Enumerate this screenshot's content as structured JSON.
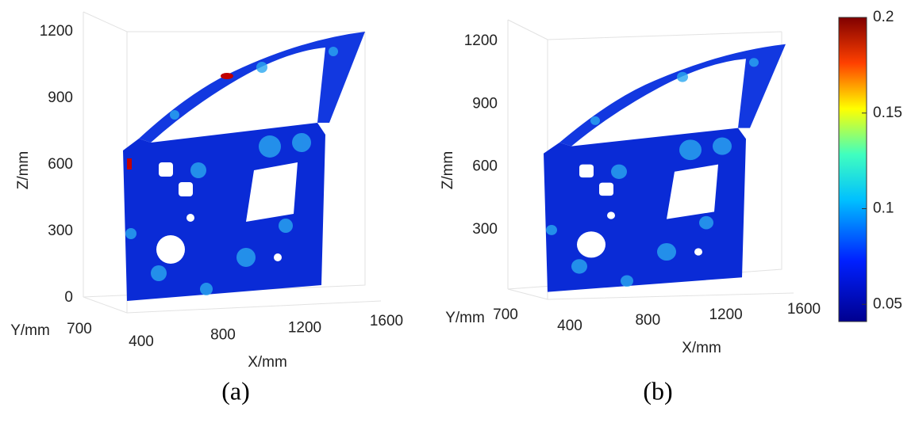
{
  "panels": [
    {
      "caption": "(a)",
      "x_label": "X/mm",
      "y_label": "Y/mm",
      "z_label": "Z/mm",
      "x_ticks": [
        400,
        800,
        1200,
        1600
      ],
      "y_ticks": [
        700
      ],
      "z_ticks": [
        0,
        300,
        600,
        900,
        1200
      ]
    },
    {
      "caption": "(b)",
      "x_label": "X/mm",
      "y_label": "Y/mm",
      "z_label": "Z/mm",
      "x_ticks": [
        400,
        800,
        1200,
        1600
      ],
      "y_ticks": [
        700
      ],
      "z_ticks": [
        300,
        600,
        900,
        1200
      ]
    }
  ],
  "colorbar": {
    "range": [
      0.041,
      0.2
    ],
    "ticks": [
      0.05,
      0.1,
      0.15,
      0.2
    ]
  }
}
